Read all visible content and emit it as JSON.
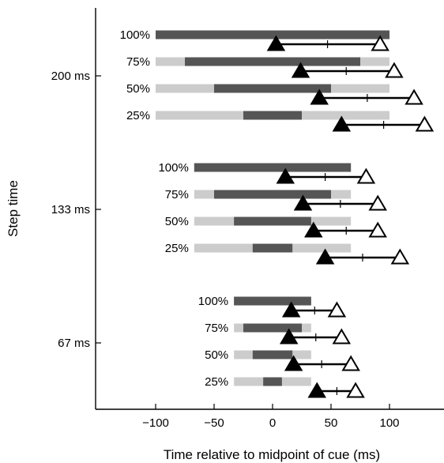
{
  "chart_data": {
    "type": "bar",
    "title": "",
    "xlabel": "Time relative to midpoint of cue (ms)",
    "ylabel": "Step time",
    "xlim": [
      -150,
      150
    ],
    "x_ticks": [
      -100,
      -50,
      0,
      50,
      100
    ],
    "x_tick_labels": [
      "−100",
      "−50",
      "0",
      "50",
      "100"
    ],
    "grid": false,
    "legend": "none",
    "colors": {
      "light_bar": "#cccccc",
      "dark_bar": "#555555",
      "marker": "#000000"
    },
    "groups": [
      {
        "label": "200 ms",
        "rows": [
          {
            "label": "100%",
            "light": [
              -100,
              100
            ],
            "dark": [
              -100,
              100
            ],
            "start": 3,
            "mid": 47,
            "end": 92
          },
          {
            "label": "75%",
            "light": [
              -100,
              100
            ],
            "dark": [
              -75,
              75
            ],
            "start": 24,
            "mid": 63,
            "end": 104
          },
          {
            "label": "50%",
            "light": [
              -100,
              100
            ],
            "dark": [
              -50,
              50
            ],
            "start": 40,
            "mid": 81,
            "end": 121
          },
          {
            "label": "25%",
            "light": [
              -100,
              100
            ],
            "dark": [
              -25,
              25
            ],
            "start": 59,
            "mid": 95,
            "end": 130
          }
        ]
      },
      {
        "label": "133 ms",
        "rows": [
          {
            "label": "100%",
            "light": [
              -67,
              67
            ],
            "dark": [
              -67,
              67
            ],
            "start": 11,
            "mid": 45,
            "end": 80
          },
          {
            "label": "75%",
            "light": [
              -67,
              67
            ],
            "dark": [
              -50,
              50
            ],
            "start": 26,
            "mid": 58,
            "end": 90
          },
          {
            "label": "50%",
            "light": [
              -67,
              67
            ],
            "dark": [
              -33,
              33
            ],
            "start": 35,
            "mid": 63,
            "end": 90
          },
          {
            "label": "25%",
            "light": [
              -67,
              67
            ],
            "dark": [
              -17,
              17
            ],
            "start": 45,
            "mid": 77,
            "end": 109
          }
        ]
      },
      {
        "label": "67 ms",
        "rows": [
          {
            "label": "100%",
            "light": [
              -33,
              33
            ],
            "dark": [
              -33,
              33
            ],
            "start": 16,
            "mid": 36,
            "end": 55
          },
          {
            "label": "75%",
            "light": [
              -33,
              33
            ],
            "dark": [
              -25,
              25
            ],
            "start": 14,
            "mid": 37,
            "end": 59
          },
          {
            "label": "50%",
            "light": [
              -33,
              33
            ],
            "dark": [
              -17,
              17
            ],
            "start": 18,
            "mid": 42,
            "end": 67
          },
          {
            "label": "25%",
            "light": [
              -33,
              33
            ],
            "dark": [
              -8,
              8
            ],
            "start": 38,
            "mid": 55,
            "end": 71
          }
        ]
      }
    ]
  }
}
